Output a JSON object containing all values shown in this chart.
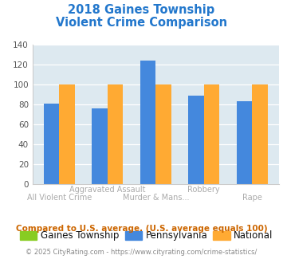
{
  "title_line1": "2018 Gaines Township",
  "title_line2": "Violent Crime Comparison",
  "title_color": "#2277cc",
  "categories": [
    "All Violent Crime",
    "Aggravated Assault",
    "Murder & Mans...",
    "Robbery",
    "Rape"
  ],
  "gaines_values": [
    0,
    0,
    0,
    0,
    0
  ],
  "pennsylvania_values": [
    81,
    76,
    124,
    89,
    83
  ],
  "national_values": [
    100,
    100,
    100,
    100,
    100
  ],
  "gaines_color": "#88cc22",
  "pennsylvania_color": "#4488dd",
  "national_color": "#ffaa33",
  "ylim": [
    0,
    140
  ],
  "yticks": [
    0,
    20,
    40,
    60,
    80,
    100,
    120,
    140
  ],
  "plot_bg_color": "#dde9f0",
  "fig_bg_color": "#ffffff",
  "legend_labels": [
    "Gaines Township",
    "Pennsylvania",
    "National"
  ],
  "legend_text_color": "#111111",
  "note_text": "Compared to U.S. average. (U.S. average equals 100)",
  "note_color": "#cc6600",
  "footer_text": "© 2025 CityRating.com - https://www.cityrating.com/crime-statistics/",
  "footer_color": "#888888",
  "footer_url_color": "#4488cc",
  "grid_color": "#ffffff",
  "bar_width": 0.32,
  "ytick_color": "#555555",
  "xtick_color": "#aaaaaa",
  "spine_color": "#cccccc"
}
